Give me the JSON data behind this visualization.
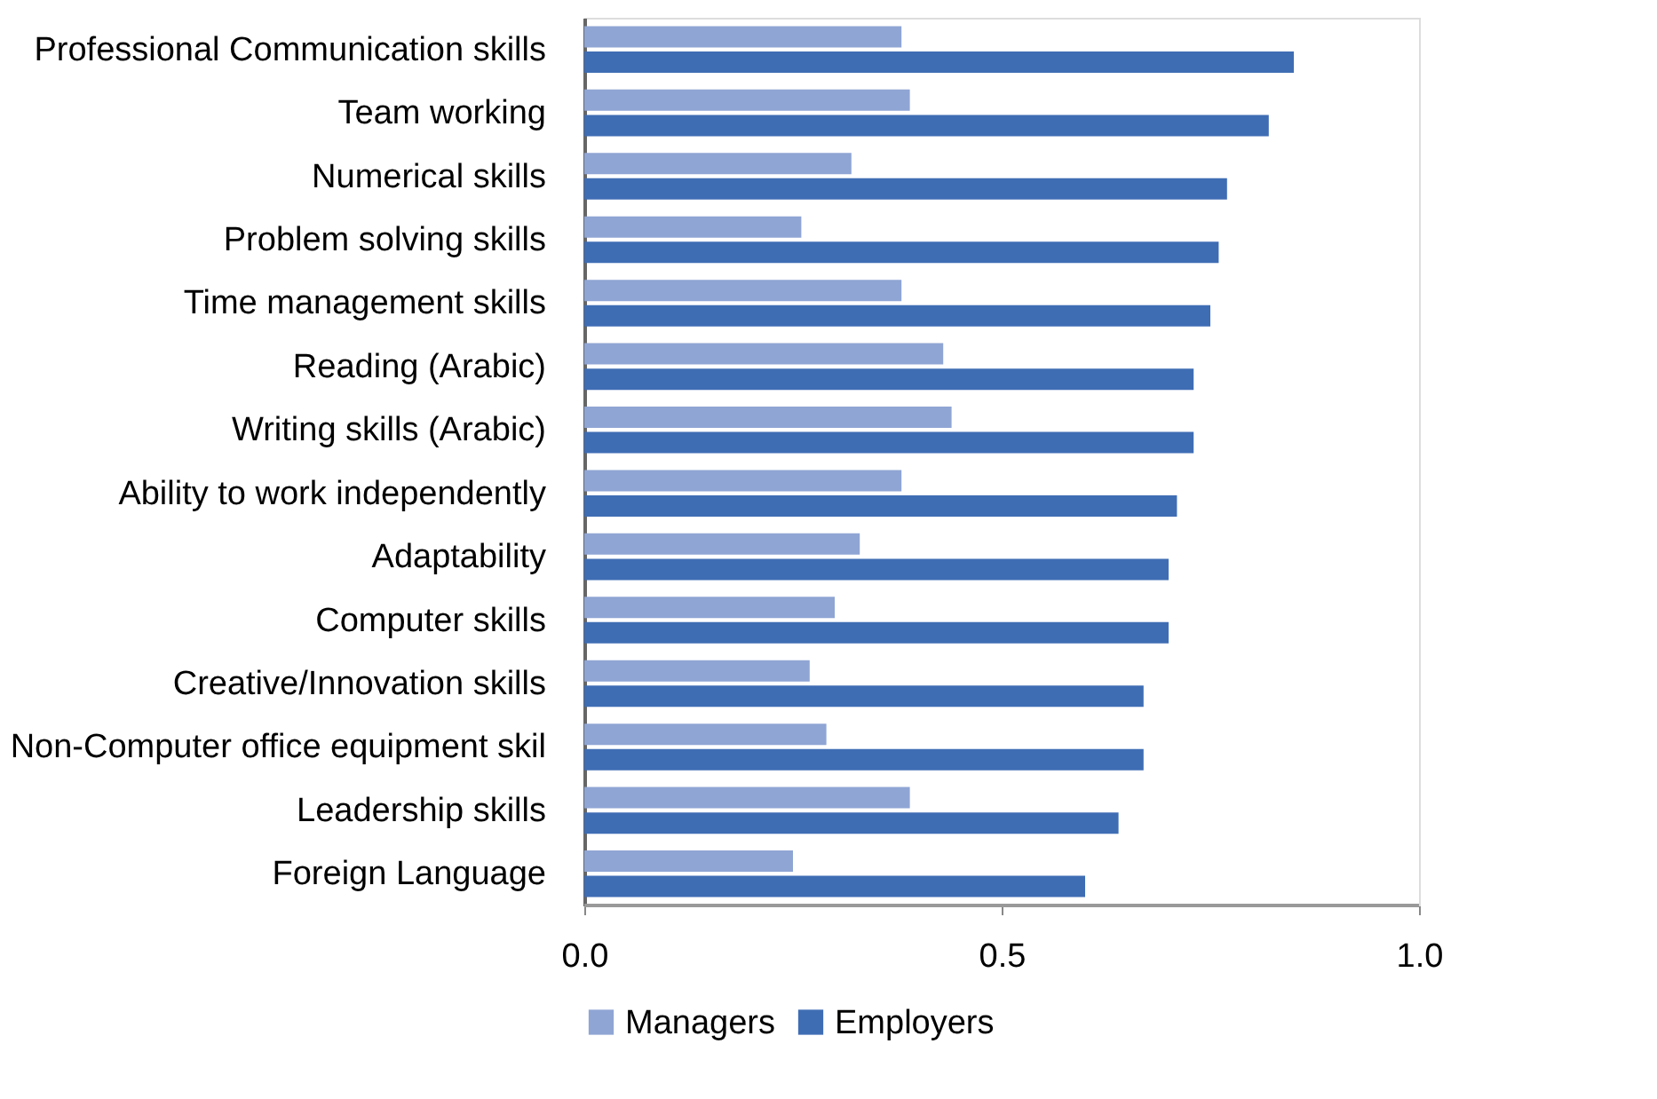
{
  "chart_data": {
    "type": "bar",
    "orientation": "horizontal",
    "categories": [
      "Professional Communication skills",
      "Team working",
      "Numerical skills",
      "Problem solving skills",
      "Time management skills",
      "Reading (Arabic)",
      "Writing skills (Arabic)",
      "Ability to work independently",
      "Adaptability",
      "Computer skills",
      "Creative/Innovation skills",
      "Non-Computer office equipment skil",
      "Leadership skills",
      "Foreign Language"
    ],
    "series": [
      {
        "name": "Managers",
        "color": "#8fa5d4",
        "values": [
          0.38,
          0.39,
          0.32,
          0.26,
          0.38,
          0.43,
          0.44,
          0.38,
          0.33,
          0.3,
          0.27,
          0.29,
          0.39,
          0.25
        ]
      },
      {
        "name": "Employers",
        "color": "#3f6db4",
        "values": [
          0.85,
          0.82,
          0.77,
          0.76,
          0.75,
          0.73,
          0.73,
          0.71,
          0.7,
          0.7,
          0.67,
          0.67,
          0.64,
          0.6
        ]
      }
    ],
    "xlim": [
      0,
      1
    ],
    "xticks": [
      {
        "value": 0,
        "label": "0.0"
      },
      {
        "value": 0.5,
        "label": "0.5"
      },
      {
        "value": 1,
        "label": "1.0"
      }
    ],
    "grid": false,
    "legend": "bottom"
  }
}
